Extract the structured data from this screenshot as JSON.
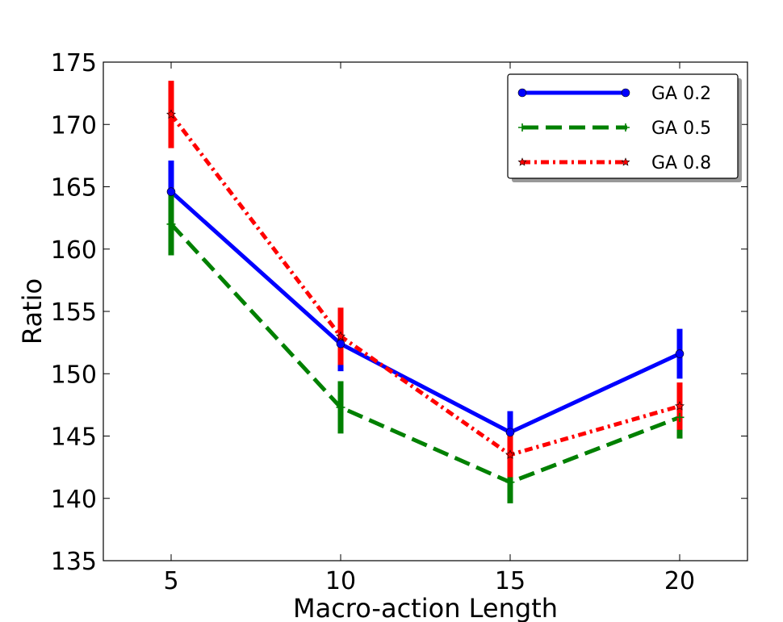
{
  "chart_data": {
    "type": "line",
    "xlabel": "Macro-action Length",
    "ylabel": "Ratio",
    "xlim": [
      3,
      22
    ],
    "ylim": [
      135,
      175
    ],
    "x_ticks": [
      5,
      10,
      15,
      20
    ],
    "y_ticks": [
      135,
      140,
      145,
      150,
      155,
      160,
      165,
      170,
      175
    ],
    "legend_position": "top-right",
    "series": [
      {
        "name": "GA 0.2",
        "color": "#0000ff",
        "style": "solid",
        "marker": "circle",
        "x": [
          5,
          10,
          15,
          20
        ],
        "y": [
          164.6,
          152.4,
          145.3,
          151.6
        ],
        "err": [
          2.5,
          2.2,
          1.7,
          2.0
        ]
      },
      {
        "name": "GA 0.5",
        "color": "#008000",
        "style": "dashed",
        "marker": "plus",
        "x": [
          5,
          10,
          15,
          20
        ],
        "y": [
          162.0,
          147.3,
          141.3,
          146.5
        ],
        "err": [
          2.5,
          2.1,
          1.7,
          1.7
        ]
      },
      {
        "name": "GA 0.8",
        "color": "#ff0000",
        "style": "dashdot",
        "marker": "star",
        "x": [
          5,
          10,
          15,
          20
        ],
        "y": [
          170.8,
          153.0,
          143.5,
          147.4
        ],
        "err": [
          2.7,
          2.3,
          1.8,
          1.9
        ]
      }
    ]
  }
}
